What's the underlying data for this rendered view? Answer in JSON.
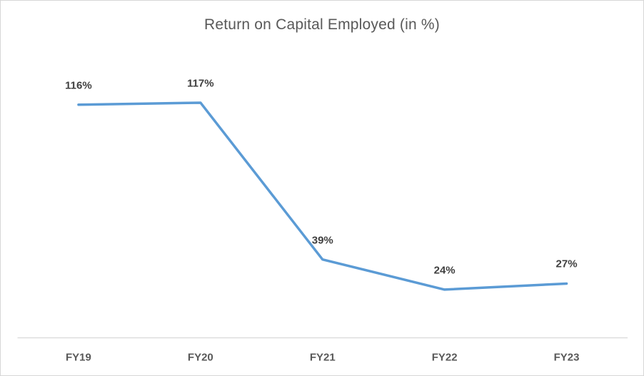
{
  "chart_data": {
    "type": "line",
    "title": "Return on Capital Employed (in %)",
    "categories": [
      "FY19",
      "FY20",
      "FY21",
      "FY22",
      "FY23"
    ],
    "values": [
      116,
      117,
      39,
      24,
      27
    ],
    "data_labels": [
      "116%",
      "117%",
      "39%",
      "24%",
      "27%"
    ],
    "xlabel": "",
    "ylabel": "",
    "ylim": [
      0,
      140
    ],
    "grid": false,
    "legend_position": "none",
    "line_color": "#5B9BD5",
    "axis_line_color": "#D9D9D9",
    "data_label_color": "#404040",
    "axis_label_color": "#595959",
    "title_color": "#595959"
  }
}
